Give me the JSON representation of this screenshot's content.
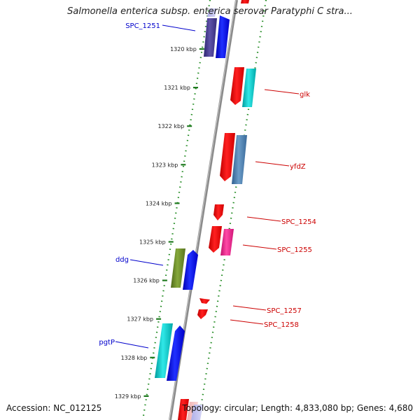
{
  "title": "Salmonella enterica subsp. enterica serovar Paratyphi C stra...",
  "footer": {
    "accession": "Accession: NC_012125",
    "summary": "Topology: circular; Length: 4,833,080 bp; Genes: 4,680"
  },
  "ruler_ticks": [
    {
      "label": "1320 kbp"
    },
    {
      "label": "1321 kbp"
    },
    {
      "label": "1322 kbp"
    },
    {
      "label": "1323 kbp"
    },
    {
      "label": "1324 kbp"
    },
    {
      "label": "1325 kbp"
    },
    {
      "label": "1326 kbp"
    },
    {
      "label": "1327 kbp"
    },
    {
      "label": "1328 kbp"
    },
    {
      "label": "1329 kbp"
    }
  ],
  "gene_labels": [
    {
      "name": "SPC_1251",
      "strand": "minus",
      "color": "#0000cc"
    },
    {
      "name": "glk",
      "strand": "plus",
      "color": "#cc0000"
    },
    {
      "name": "yfdZ",
      "strand": "plus",
      "color": "#cc0000"
    },
    {
      "name": "SPC_1254",
      "strand": "plus",
      "color": "#cc0000"
    },
    {
      "name": "SPC_1255",
      "strand": "plus",
      "color": "#cc0000"
    },
    {
      "name": "ddg",
      "strand": "minus",
      "color": "#0000cc"
    },
    {
      "name": "SPC_1257",
      "strand": "plus",
      "color": "#cc0000"
    },
    {
      "name": "SPC_1258",
      "strand": "plus",
      "color": "#cc0000"
    },
    {
      "name": "pgtP",
      "strand": "minus",
      "color": "#0000cc"
    }
  ],
  "colors": {
    "backbone": "#808080",
    "ruler_dots": "#228b22",
    "plus_strand_gene": "#ff0000",
    "minus_strand_gene": "#0000ff",
    "category_cyan": "#00cccc",
    "category_steel": "#4682b4",
    "category_purple": "#4b3f8f",
    "category_olive": "#6b8e23",
    "category_pink": "#ff1493"
  }
}
